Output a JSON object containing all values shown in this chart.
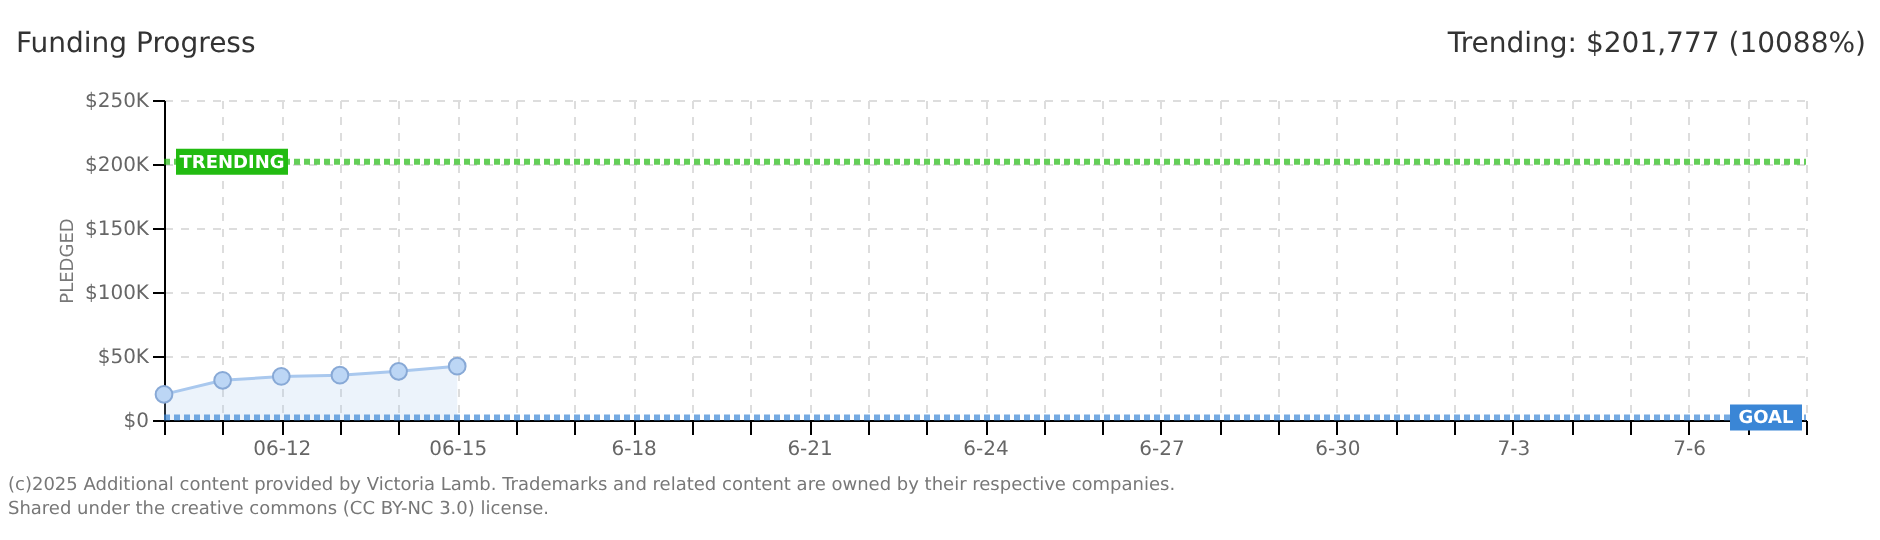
{
  "chart_data": {
    "type": "area",
    "title": "Funding Progress",
    "subtitle": "Trending:  $201,777 (10088%)",
    "ylabel": "PLEDGED",
    "x": [
      "2025-06-10",
      "2025-06-11",
      "2025-06-12",
      "2025-06-13",
      "2025-06-14",
      "2025-06-15"
    ],
    "series": [
      {
        "color": "#a9c8ee",
        "values": [
          20000,
          31000,
          34000,
          35000,
          38000,
          42000
        ]
      }
    ],
    "marker": "circle",
    "grid": true,
    "xlim": [
      "2025-06-10",
      "2025-07-08"
    ],
    "xticks": [
      {
        "value": "2025-06-10",
        "label": null
      },
      {
        "value": "2025-06-11",
        "label": null
      },
      {
        "value": "2025-06-12",
        "label": "06-12"
      },
      {
        "value": "2025-06-13",
        "label": null
      },
      {
        "value": "2025-06-14",
        "label": null
      },
      {
        "value": "2025-06-15",
        "label": "06-15"
      },
      {
        "value": "2025-06-16",
        "label": null
      },
      {
        "value": "2025-06-17",
        "label": null
      },
      {
        "value": "2025-06-18",
        "label": "6-18"
      },
      {
        "value": "2025-06-19",
        "label": null
      },
      {
        "value": "2025-06-20",
        "label": null
      },
      {
        "value": "2025-06-21",
        "label": "6-21"
      },
      {
        "value": "2025-06-22",
        "label": null
      },
      {
        "value": "2025-06-23",
        "label": null
      },
      {
        "value": "2025-06-24",
        "label": "6-24"
      },
      {
        "value": "2025-06-25",
        "label": null
      },
      {
        "value": "2025-06-26",
        "label": null
      },
      {
        "value": "2025-06-27",
        "label": "6-27"
      },
      {
        "value": "2025-06-28",
        "label": null
      },
      {
        "value": "2025-06-29",
        "label": null
      },
      {
        "value": "2025-06-30",
        "label": "6-30"
      },
      {
        "value": "2025-07-01",
        "label": null
      },
      {
        "value": "2025-07-02",
        "label": null
      },
      {
        "value": "2025-07-03",
        "label": "7-3"
      },
      {
        "value": "2025-07-04",
        "label": null
      },
      {
        "value": "2025-07-05",
        "label": null
      },
      {
        "value": "2025-07-06",
        "label": "7-6"
      },
      {
        "value": "2025-07-07",
        "label": null
      },
      {
        "value": "2025-07-08",
        "label": null
      }
    ],
    "ylim": [
      0,
      250000
    ],
    "yticks": [
      {
        "value": 0,
        "label": "$0"
      },
      {
        "value": 50000,
        "label": "$50K"
      },
      {
        "value": 100000,
        "label": "$100K"
      },
      {
        "value": 150000,
        "label": "$150K"
      },
      {
        "value": 200000,
        "label": "$200K"
      },
      {
        "value": 250000,
        "label": "$250K"
      }
    ],
    "ref_lines": [
      {
        "axis": "y",
        "value": 201777,
        "label": "TRENDING",
        "color": "#22bb11",
        "line_style": "dotted"
      },
      {
        "axis": "y",
        "value": 2000,
        "label": "GOAL",
        "color": "#3a86d6",
        "line_style": "dotted"
      }
    ],
    "annotations": [
      "(c)2025 Additional content provided by Victoria Lamb. Trademarks and related content are owned by their respective companies.",
      "Shared under the creative commons (CC BY-NC 3.0) license."
    ]
  }
}
